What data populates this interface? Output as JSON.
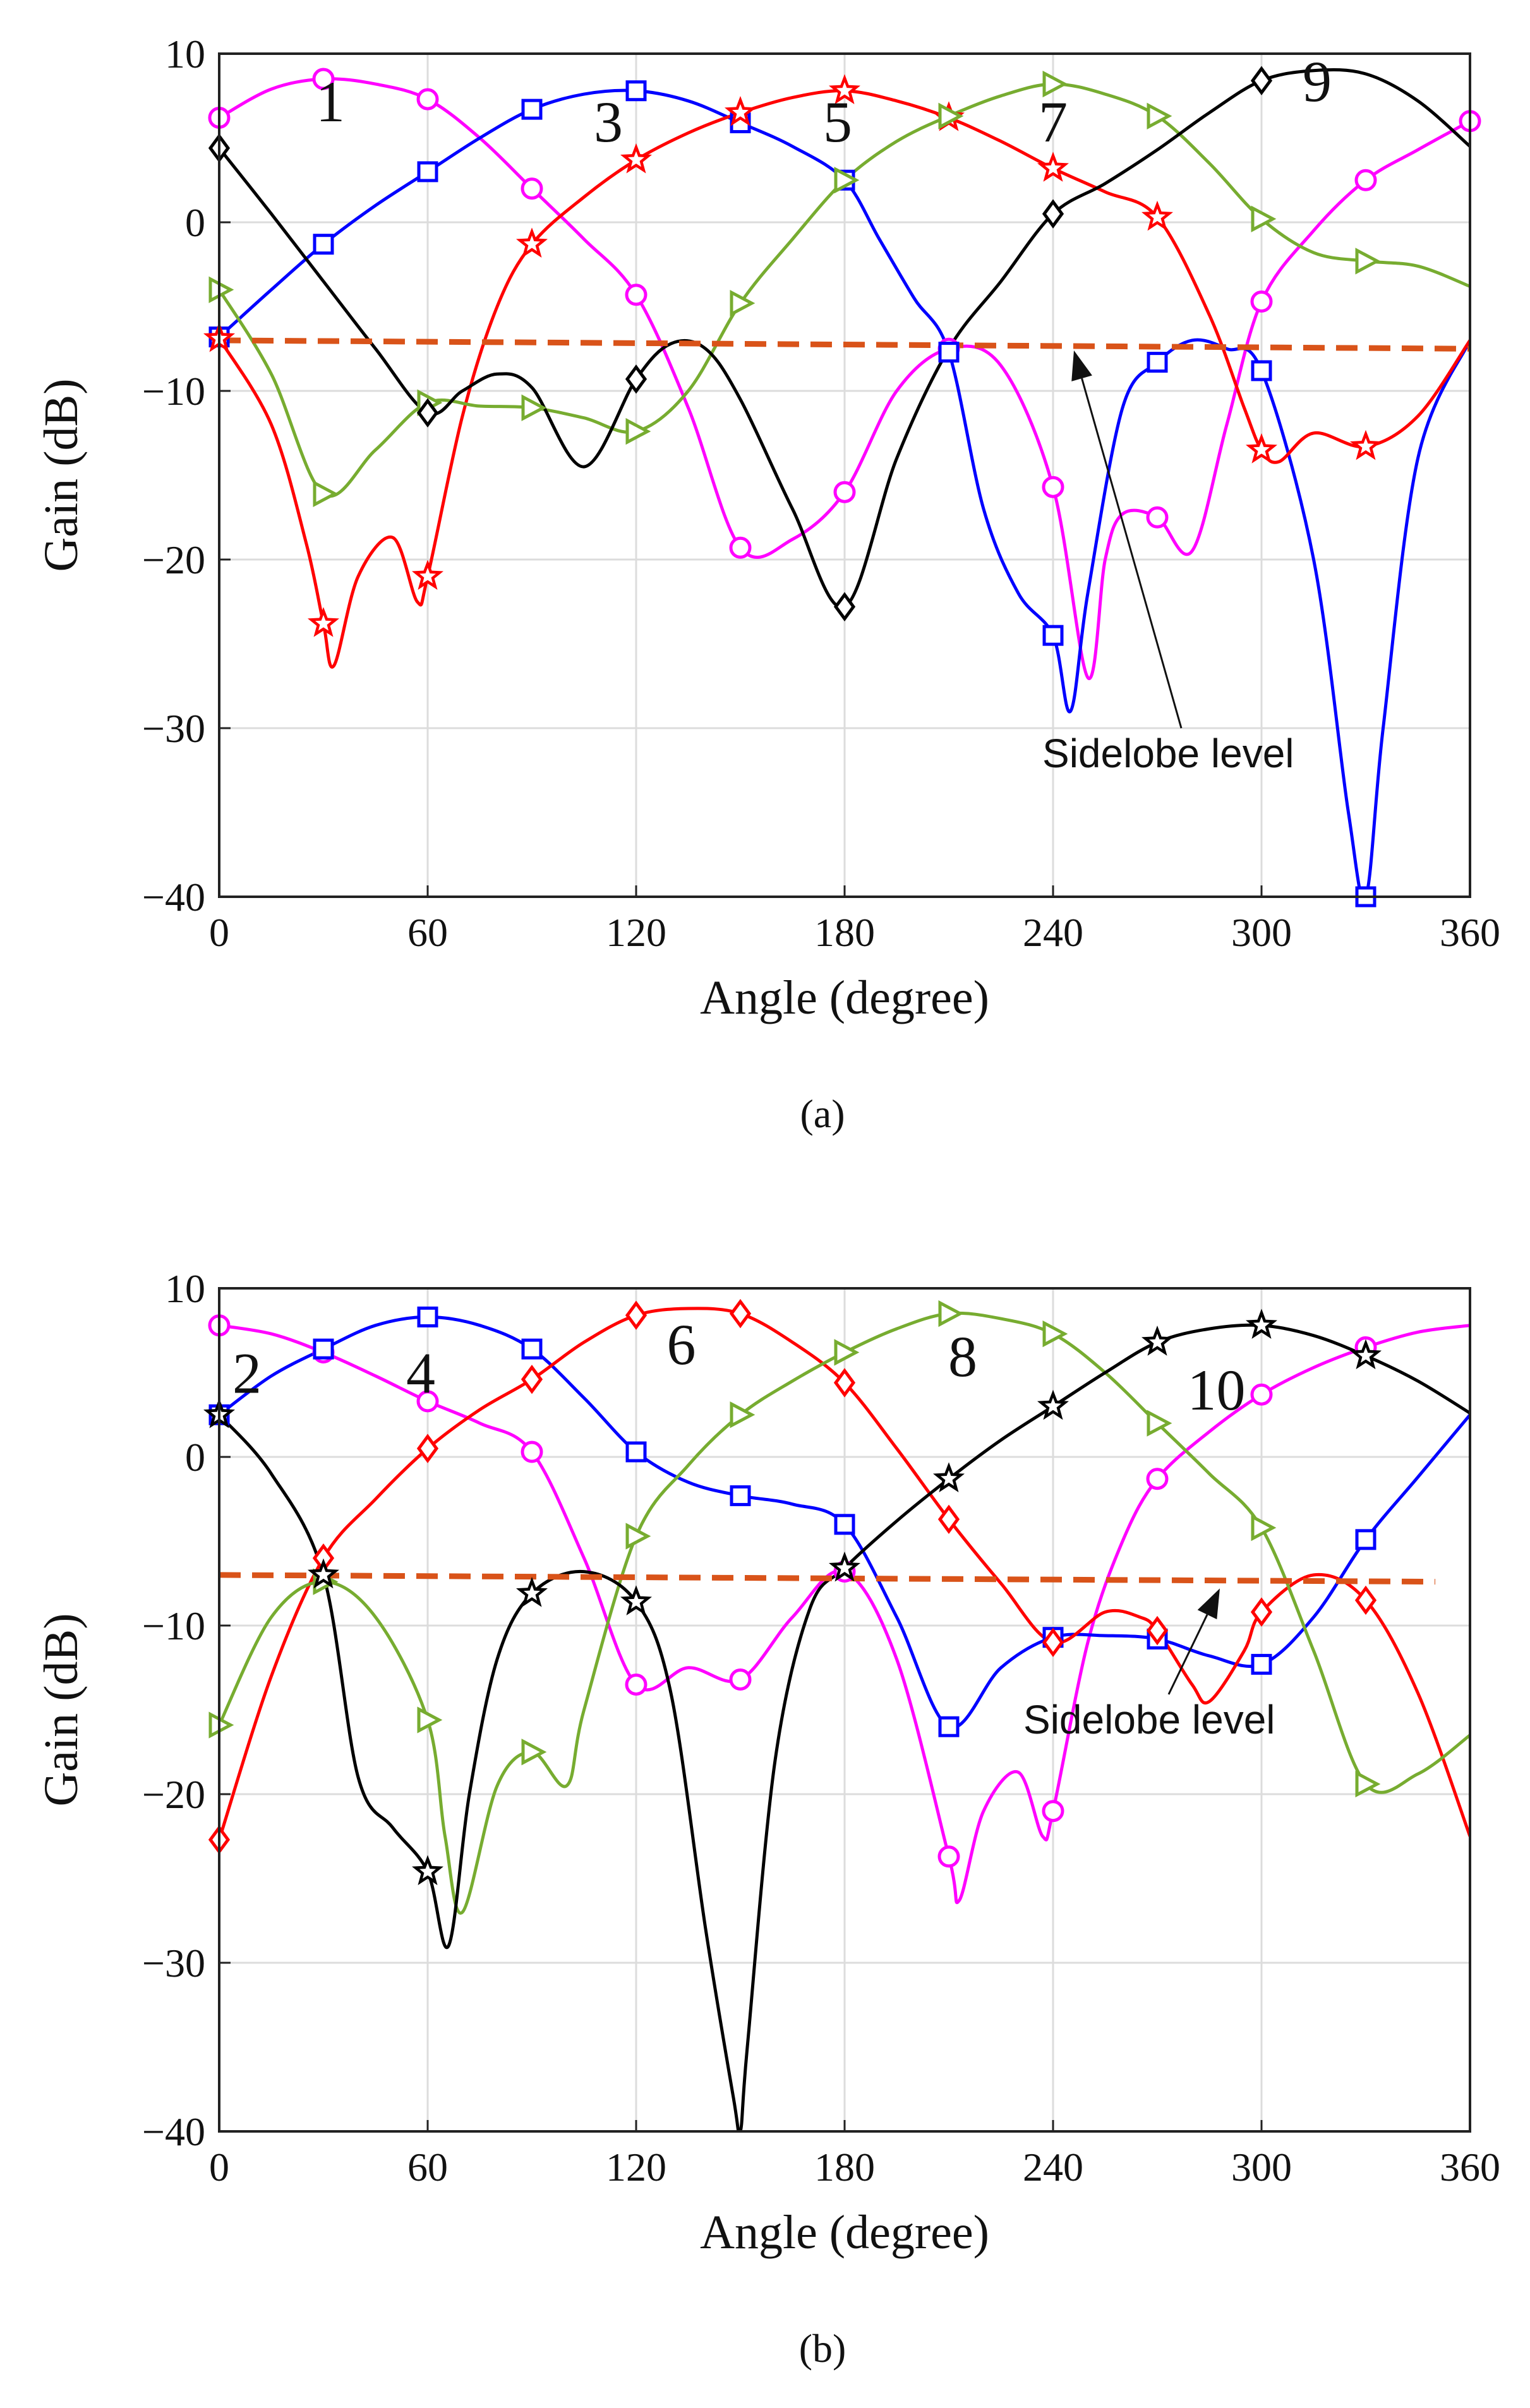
{
  "chart_data": [
    {
      "type": "line",
      "panel": "a",
      "caption": "(a)",
      "xlabel": "Angle (degree)",
      "ylabel": "Gain (dB)",
      "xlim": [
        0,
        360
      ],
      "ylim": [
        -40,
        10
      ],
      "xticks": [
        0,
        60,
        120,
        180,
        240,
        300,
        360
      ],
      "yticks": [
        10,
        0,
        -10,
        -20,
        -30,
        -40
      ],
      "ytick_labels": [
        "10",
        "0",
        "−10",
        "−20",
        "−30",
        "−40"
      ],
      "grid": true,
      "annotation": {
        "text": "Sidelobe level",
        "points_to": [
          246,
          -7.6
        ]
      },
      "sidelobe_level": {
        "color": "#d95319",
        "x": [
          0,
          360
        ],
        "y": [
          -7.0,
          -7.5
        ]
      },
      "beam_labels": [
        {
          "text": "1",
          "x": 32,
          "y": 6.0
        },
        {
          "text": "3",
          "x": 112,
          "y": 4.8
        },
        {
          "text": "5",
          "x": 178,
          "y": 4.8
        },
        {
          "text": "7",
          "x": 240,
          "y": 4.8
        },
        {
          "text": "9",
          "x": 316,
          "y": 7.2
        }
      ],
      "series": [
        {
          "name": "1",
          "color": "#ff00ff",
          "marker": "circle",
          "x": [
            0,
            30,
            60,
            90,
            120,
            150,
            180,
            210,
            240,
            270,
            300,
            330,
            360
          ],
          "y": [
            6.2,
            8.5,
            7.3,
            2.0,
            -4.3,
            -19.3,
            -16.0,
            -7.5,
            -15.7,
            -17.5,
            -4.7,
            2.5,
            6.0
          ],
          "curve_x": [
            0,
            15,
            30,
            45,
            60,
            75,
            90,
            105,
            120,
            135,
            150,
            165,
            180,
            195,
            210,
            225,
            240,
            250,
            255,
            260,
            270,
            280,
            290,
            300,
            315,
            330,
            345,
            360
          ],
          "curve_y": [
            6.2,
            7.9,
            8.5,
            8.2,
            7.3,
            5.0,
            2.0,
            -1.0,
            -4.3,
            -11.0,
            -19.3,
            -18.8,
            -16.0,
            -10.0,
            -7.5,
            -8.5,
            -15.7,
            -27.0,
            -20.0,
            -17.3,
            -17.5,
            -19.5,
            -12.0,
            -4.7,
            -0.5,
            2.5,
            4.3,
            6.0
          ]
        },
        {
          "name": "3",
          "color": "#0000ff",
          "marker": "square",
          "x": [
            0,
            30,
            60,
            90,
            120,
            150,
            180,
            210,
            240,
            270,
            300,
            330
          ],
          "y": [
            -6.8,
            -1.3,
            3.0,
            6.7,
            7.8,
            5.9,
            2.5,
            -7.7,
            -24.5,
            -8.3,
            -8.8,
            -40.0
          ],
          "curve_x": [
            0,
            15,
            30,
            45,
            60,
            75,
            90,
            105,
            120,
            135,
            150,
            165,
            180,
            190,
            200,
            210,
            220,
            230,
            240,
            245,
            250,
            260,
            270,
            280,
            290,
            300,
            315,
            325,
            330,
            335,
            345,
            360
          ],
          "curve_y": [
            -6.8,
            -4.0,
            -1.3,
            1.0,
            3.0,
            5.0,
            6.7,
            7.6,
            7.8,
            7.2,
            5.9,
            4.5,
            2.5,
            -1.0,
            -4.5,
            -7.7,
            -17.0,
            -22.0,
            -24.5,
            -29.0,
            -22.0,
            -11.0,
            -8.3,
            -7.0,
            -7.5,
            -8.8,
            -20.0,
            -35.0,
            -40.0,
            -30.0,
            -14.0,
            -7.0
          ]
        },
        {
          "name": "5",
          "color": "#ff0000",
          "marker": "star",
          "x": [
            0,
            30,
            60,
            90,
            120,
            150,
            180,
            210,
            240,
            270,
            300,
            330
          ],
          "y": [
            -6.9,
            -23.8,
            -21.0,
            -1.3,
            3.7,
            6.5,
            7.8,
            6.2,
            3.2,
            0.3,
            -13.5,
            -13.3
          ],
          "curve_x": [
            0,
            15,
            25,
            30,
            33,
            40,
            50,
            57,
            60,
            70,
            80,
            90,
            105,
            120,
            135,
            150,
            165,
            180,
            195,
            210,
            225,
            240,
            255,
            270,
            285,
            295,
            300,
            305,
            315,
            330,
            345,
            360
          ],
          "curve_y": [
            -6.9,
            -12.0,
            -19.0,
            -23.8,
            -26.3,
            -21.0,
            -18.7,
            -22.5,
            -21.0,
            -11.5,
            -5.0,
            -1.3,
            1.5,
            3.7,
            5.3,
            6.5,
            7.4,
            7.8,
            7.2,
            6.2,
            4.8,
            3.2,
            1.8,
            0.3,
            -5.5,
            -11.0,
            -13.5,
            -14.2,
            -12.5,
            -13.3,
            -11.5,
            -7.0
          ]
        },
        {
          "name": "7",
          "color": "#77ac30",
          "marker": "triangle-right",
          "x": [
            0,
            30,
            60,
            90,
            120,
            150,
            180,
            210,
            240,
            270,
            300,
            330
          ],
          "y": [
            -4.0,
            -16.1,
            -10.7,
            -11.0,
            -12.4,
            -4.8,
            2.5,
            6.3,
            8.2,
            6.3,
            0.2,
            -2.3
          ],
          "curve_x": [
            0,
            15,
            30,
            45,
            60,
            75,
            90,
            105,
            120,
            135,
            150,
            165,
            180,
            195,
            210,
            225,
            240,
            255,
            270,
            285,
            300,
            315,
            330,
            345,
            360
          ],
          "curve_y": [
            -4.0,
            -9.0,
            -16.1,
            -13.5,
            -10.7,
            -10.9,
            -11.0,
            -11.6,
            -12.4,
            -10.0,
            -4.8,
            -1.0,
            2.5,
            4.8,
            6.3,
            7.5,
            8.2,
            7.6,
            6.3,
            3.5,
            0.2,
            -1.8,
            -2.3,
            -2.6,
            -3.8
          ]
        },
        {
          "name": "9",
          "color": "#000000",
          "marker": "diamond",
          "x": [
            0,
            60,
            120,
            180,
            240,
            300
          ],
          "y": [
            4.4,
            -11.3,
            -9.3,
            -22.8,
            0.5,
            8.4
          ],
          "curve_x": [
            0,
            15,
            30,
            45,
            60,
            70,
            80,
            90,
            105,
            120,
            130,
            140,
            150,
            165,
            180,
            195,
            210,
            225,
            240,
            255,
            270,
            285,
            300,
            315,
            330,
            345,
            360
          ],
          "curve_y": [
            4.4,
            0.5,
            -3.5,
            -7.5,
            -11.3,
            -10.0,
            -9.0,
            -9.8,
            -14.5,
            -9.3,
            -7.2,
            -7.5,
            -10.5,
            -17.0,
            -22.8,
            -14.0,
            -7.5,
            -3.5,
            0.5,
            2.3,
            4.3,
            6.5,
            8.4,
            9.0,
            8.8,
            7.2,
            4.5
          ]
        }
      ]
    },
    {
      "type": "line",
      "panel": "b",
      "caption": "(b)",
      "xlabel": "Angle (degree)",
      "ylabel": "Gain (dB)",
      "xlim": [
        0,
        360
      ],
      "ylim": [
        -40,
        10
      ],
      "xticks": [
        0,
        60,
        120,
        180,
        240,
        300,
        360
      ],
      "yticks": [
        10,
        0,
        -10,
        -20,
        -30,
        -40
      ],
      "ytick_labels": [
        "10",
        "0",
        "−10",
        "−20",
        "−30",
        "−40"
      ],
      "grid": true,
      "annotation": {
        "text": "Sidelobe level",
        "points_to": [
          288,
          -7.8
        ]
      },
      "sidelobe_level": {
        "color": "#d95319",
        "x": [
          0,
          350
        ],
        "y": [
          -7.0,
          -7.4
        ]
      },
      "beam_labels": [
        {
          "text": "2",
          "x": 8,
          "y": 3.8
        },
        {
          "text": "4",
          "x": 58,
          "y": 3.8
        },
        {
          "text": "6",
          "x": 133,
          "y": 5.5
        },
        {
          "text": "8",
          "x": 214,
          "y": 4.8
        },
        {
          "text": "10",
          "x": 287,
          "y": 2.8
        }
      ],
      "series": [
        {
          "name": "2",
          "color": "#ff00ff",
          "marker": "circle",
          "x": [
            0,
            30,
            60,
            90,
            120,
            150,
            180,
            210,
            240,
            270,
            300,
            330
          ],
          "y": [
            7.8,
            6.2,
            3.3,
            0.3,
            -13.5,
            -13.2,
            -6.8,
            -23.7,
            -21.0,
            -1.3,
            3.7,
            6.5
          ],
          "curve_x": [
            0,
            15,
            30,
            45,
            60,
            75,
            90,
            105,
            120,
            135,
            150,
            165,
            180,
            195,
            210,
            213,
            220,
            230,
            237,
            240,
            250,
            260,
            270,
            285,
            300,
            315,
            330,
            345,
            360
          ],
          "curve_y": [
            7.8,
            7.3,
            6.2,
            4.8,
            3.3,
            2.0,
            0.3,
            -6.0,
            -13.5,
            -12.5,
            -13.2,
            -9.5,
            -6.8,
            -12.0,
            -23.7,
            -26.3,
            -21.0,
            -18.7,
            -22.5,
            -21.0,
            -11.0,
            -5.0,
            -1.3,
            1.5,
            3.7,
            5.3,
            6.5,
            7.4,
            7.8
          ]
        },
        {
          "name": "4",
          "color": "#0000ff",
          "marker": "square",
          "x": [
            0,
            30,
            60,
            90,
            120,
            150,
            180,
            210,
            240,
            270,
            300,
            330
          ],
          "y": [
            2.5,
            6.4,
            8.3,
            6.4,
            0.3,
            -2.3,
            -4.0,
            -16.0,
            -10.7,
            -10.8,
            -12.3,
            -4.9
          ],
          "curve_x": [
            0,
            15,
            30,
            45,
            60,
            75,
            90,
            105,
            120,
            135,
            150,
            165,
            180,
            195,
            210,
            225,
            240,
            255,
            270,
            285,
            300,
            315,
            330,
            345,
            360
          ],
          "curve_y": [
            2.5,
            4.8,
            6.4,
            7.8,
            8.3,
            7.8,
            6.4,
            3.5,
            0.3,
            -1.5,
            -2.3,
            -2.8,
            -4.0,
            -9.5,
            -16.0,
            -12.5,
            -10.7,
            -10.6,
            -10.8,
            -11.8,
            -12.3,
            -9.5,
            -4.9,
            -1.2,
            2.5
          ]
        },
        {
          "name": "6",
          "color": "#ff0000",
          "marker": "diamond",
          "x": [
            0,
            30,
            60,
            90,
            120,
            150,
            180,
            210,
            240,
            270,
            300,
            330
          ],
          "y": [
            -22.7,
            -6.0,
            0.5,
            4.6,
            8.4,
            8.5,
            4.4,
            -3.7,
            -11.0,
            -10.3,
            -9.2,
            -8.5
          ],
          "curve_x": [
            0,
            15,
            30,
            45,
            60,
            75,
            90,
            105,
            120,
            135,
            150,
            165,
            180,
            195,
            210,
            225,
            240,
            255,
            265,
            270,
            280,
            285,
            295,
            300,
            315,
            330,
            345,
            360
          ],
          "curve_y": [
            -22.7,
            -13.0,
            -6.0,
            -2.5,
            0.5,
            2.8,
            4.6,
            6.8,
            8.4,
            8.8,
            8.5,
            6.8,
            4.4,
            0.5,
            -3.7,
            -7.5,
            -11.0,
            -9.2,
            -9.5,
            -10.3,
            -13.5,
            -14.5,
            -11.5,
            -9.2,
            -7.0,
            -8.5,
            -14.0,
            -22.5
          ]
        },
        {
          "name": "8",
          "color": "#77ac30",
          "marker": "triangle-right",
          "x": [
            0,
            30,
            60,
            90,
            120,
            150,
            180,
            210,
            240,
            270,
            300,
            330
          ],
          "y": [
            -15.9,
            -7.4,
            -15.6,
            -17.5,
            -4.7,
            2.5,
            6.2,
            8.5,
            7.3,
            2.0,
            -4.2,
            -19.4
          ],
          "curve_x": [
            0,
            15,
            30,
            45,
            60,
            65,
            70,
            80,
            90,
            100,
            105,
            120,
            135,
            150,
            165,
            180,
            195,
            210,
            225,
            240,
            255,
            270,
            285,
            300,
            315,
            330,
            345,
            360
          ],
          "curve_y": [
            -15.9,
            -9.5,
            -7.4,
            -9.5,
            -15.6,
            -22.5,
            -27.0,
            -19.5,
            -17.5,
            -19.5,
            -15.0,
            -4.7,
            -0.5,
            2.5,
            4.5,
            6.2,
            7.6,
            8.5,
            8.2,
            7.3,
            5.0,
            2.0,
            -1.0,
            -4.2,
            -11.5,
            -19.4,
            -18.8,
            -16.5
          ]
        },
        {
          "name": "10",
          "color": "#000000",
          "marker": "star",
          "x": [
            0,
            30,
            60,
            90,
            120,
            180,
            210,
            240,
            270,
            300,
            330
          ],
          "y": [
            2.5,
            -7.0,
            -24.6,
            -8.1,
            -8.6,
            -6.6,
            -1.3,
            3.0,
            6.8,
            7.8,
            6.0
          ],
          "curve_x": [
            0,
            15,
            30,
            40,
            50,
            60,
            66,
            72,
            80,
            90,
            105,
            120,
            130,
            140,
            148,
            150,
            152,
            160,
            170,
            180,
            195,
            210,
            225,
            240,
            255,
            270,
            285,
            300,
            315,
            330,
            345,
            360
          ],
          "curve_y": [
            2.5,
            -1.0,
            -7.0,
            -19.0,
            -22.0,
            -24.6,
            -29.0,
            -20.0,
            -12.0,
            -8.1,
            -6.8,
            -8.6,
            -14.0,
            -28.0,
            -38.0,
            -40.0,
            -35.0,
            -18.0,
            -9.0,
            -6.6,
            -3.8,
            -1.3,
            1.0,
            3.0,
            5.0,
            6.8,
            7.6,
            7.8,
            7.2,
            6.0,
            4.5,
            2.6
          ]
        }
      ]
    }
  ]
}
